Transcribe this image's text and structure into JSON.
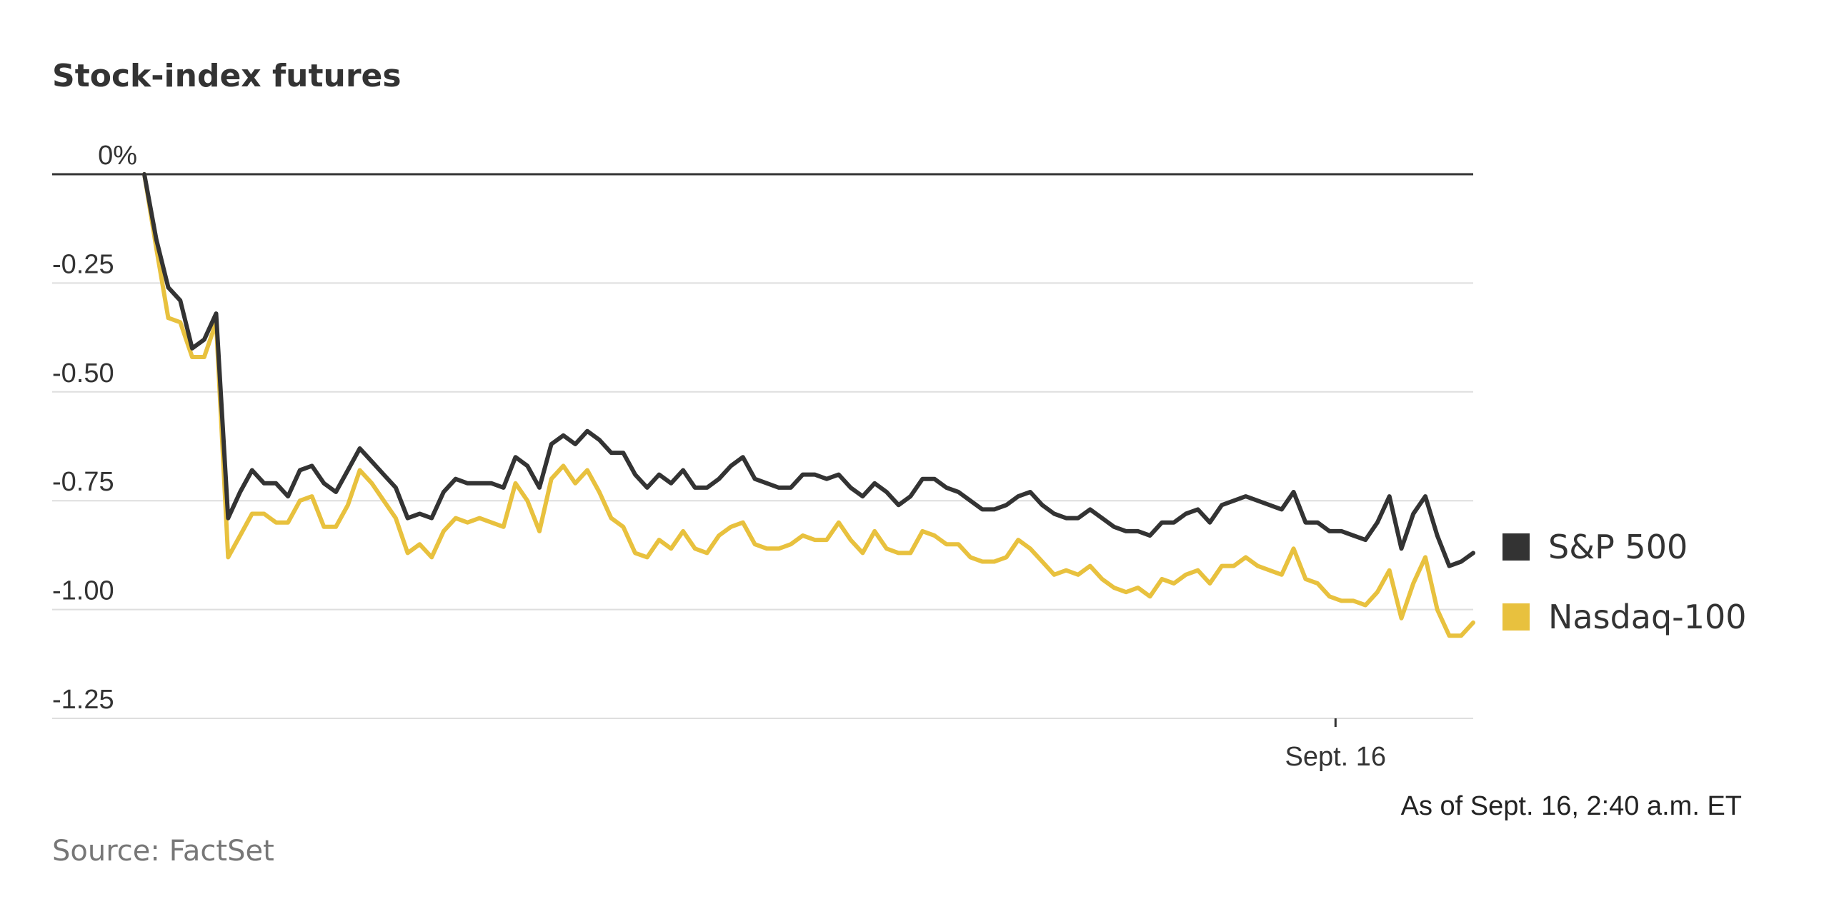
{
  "chart_data": {
    "type": "line",
    "title": "Stock-index futures",
    "y_ticks": [
      {
        "value": 0,
        "label": "0%"
      },
      {
        "value": -0.25,
        "label": "-0.25"
      },
      {
        "value": -0.5,
        "label": "-0.50"
      },
      {
        "value": -0.75,
        "label": "-0.75"
      },
      {
        "value": -1.0,
        "label": "-1.00"
      },
      {
        "value": -1.25,
        "label": "-1.25"
      }
    ],
    "ylim": [
      -1.25,
      0
    ],
    "x_ticks": [
      {
        "index": 99.5,
        "label": "Sept. 16"
      }
    ],
    "grid": true,
    "legend_position": "right",
    "note": "As of Sept. 16, 2:40 a.m. ET",
    "source": "Source: FactSet",
    "series": [
      {
        "name": "S&P 500",
        "color": "#333333",
        "values": [
          0.0,
          -0.15,
          -0.26,
          -0.29,
          -0.4,
          -0.38,
          -0.32,
          -0.79,
          -0.73,
          -0.68,
          -0.71,
          -0.71,
          -0.74,
          -0.68,
          -0.67,
          -0.71,
          -0.73,
          -0.68,
          -0.63,
          -0.66,
          -0.69,
          -0.72,
          -0.79,
          -0.78,
          -0.79,
          -0.73,
          -0.7,
          -0.71,
          -0.71,
          -0.71,
          -0.72,
          -0.65,
          -0.67,
          -0.72,
          -0.62,
          -0.6,
          -0.62,
          -0.59,
          -0.61,
          -0.64,
          -0.64,
          -0.69,
          -0.72,
          -0.69,
          -0.71,
          -0.68,
          -0.72,
          -0.72,
          -0.7,
          -0.67,
          -0.65,
          -0.7,
          -0.71,
          -0.72,
          -0.72,
          -0.69,
          -0.69,
          -0.7,
          -0.69,
          -0.72,
          -0.74,
          -0.71,
          -0.73,
          -0.76,
          -0.74,
          -0.7,
          -0.7,
          -0.72,
          -0.73,
          -0.75,
          -0.77,
          -0.77,
          -0.76,
          -0.74,
          -0.73,
          -0.76,
          -0.78,
          -0.79,
          -0.79,
          -0.77,
          -0.79,
          -0.81,
          -0.82,
          -0.82,
          -0.83,
          -0.8,
          -0.8,
          -0.78,
          -0.77,
          -0.8,
          -0.76,
          -0.75,
          -0.74,
          -0.75,
          -0.76,
          -0.77,
          -0.73,
          -0.8,
          -0.8,
          -0.82,
          -0.82,
          -0.83,
          -0.84,
          -0.8,
          -0.74,
          -0.86,
          -0.78,
          -0.74,
          -0.83,
          -0.9,
          -0.89,
          -0.87
        ]
      },
      {
        "name": "Nasdaq-100",
        "color": "#e8c13e",
        "values": [
          0.0,
          -0.17,
          -0.33,
          -0.34,
          -0.42,
          -0.42,
          -0.34,
          -0.88,
          -0.83,
          -0.78,
          -0.78,
          -0.8,
          -0.8,
          -0.75,
          -0.74,
          -0.81,
          -0.81,
          -0.76,
          -0.68,
          -0.71,
          -0.75,
          -0.79,
          -0.87,
          -0.85,
          -0.88,
          -0.82,
          -0.79,
          -0.8,
          -0.79,
          -0.8,
          -0.81,
          -0.71,
          -0.75,
          -0.82,
          -0.7,
          -0.67,
          -0.71,
          -0.68,
          -0.73,
          -0.79,
          -0.81,
          -0.87,
          -0.88,
          -0.84,
          -0.86,
          -0.82,
          -0.86,
          -0.87,
          -0.83,
          -0.81,
          -0.8,
          -0.85,
          -0.86,
          -0.86,
          -0.85,
          -0.83,
          -0.84,
          -0.84,
          -0.8,
          -0.84,
          -0.87,
          -0.82,
          -0.86,
          -0.87,
          -0.87,
          -0.82,
          -0.83,
          -0.85,
          -0.85,
          -0.88,
          -0.89,
          -0.89,
          -0.88,
          -0.84,
          -0.86,
          -0.89,
          -0.92,
          -0.91,
          -0.92,
          -0.9,
          -0.93,
          -0.95,
          -0.96,
          -0.95,
          -0.97,
          -0.93,
          -0.94,
          -0.92,
          -0.91,
          -0.94,
          -0.9,
          -0.9,
          -0.88,
          -0.9,
          -0.91,
          -0.92,
          -0.86,
          -0.93,
          -0.94,
          -0.97,
          -0.98,
          -0.98,
          -0.99,
          -0.96,
          -0.91,
          -1.02,
          -0.94,
          -0.88,
          -1.0,
          -1.06,
          -1.06,
          -1.03
        ]
      }
    ]
  }
}
